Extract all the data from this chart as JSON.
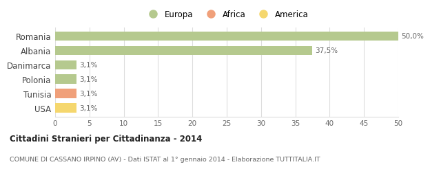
{
  "categories": [
    "USA",
    "Tunisia",
    "Polonia",
    "Danimarca",
    "Albania",
    "Romania"
  ],
  "values": [
    3.1,
    3.1,
    3.1,
    3.1,
    37.5,
    50.0
  ],
  "colors": [
    "#f5d76e",
    "#f0a07a",
    "#b5c98e",
    "#b5c98e",
    "#b5c98e",
    "#b5c98e"
  ],
  "labels": [
    "3,1%",
    "3,1%",
    "3,1%",
    "3,1%",
    "37,5%",
    "50,0%"
  ],
  "xlim": [
    0,
    50
  ],
  "xticks": [
    0,
    5,
    10,
    15,
    20,
    25,
    30,
    35,
    40,
    45,
    50
  ],
  "legend_items": [
    {
      "label": "Europa",
      "color": "#b5c98e"
    },
    {
      "label": "Africa",
      "color": "#f0a07a"
    },
    {
      "label": "America",
      "color": "#f5d76e"
    }
  ],
  "title": "Cittadini Stranieri per Cittadinanza - 2014",
  "subtitle": "COMUNE DI CASSANO IRPINO (AV) - Dati ISTAT al 1° gennaio 2014 - Elaborazione TUTTITALIA.IT",
  "background_color": "#ffffff",
  "grid_color": "#dddddd",
  "bar_height": 0.65
}
